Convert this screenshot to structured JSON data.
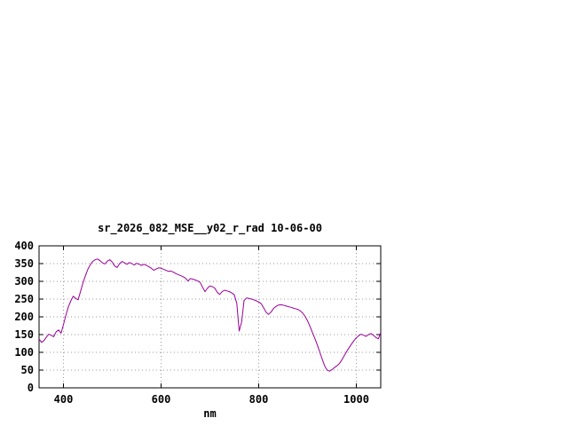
{
  "page": {
    "background": "#ffffff"
  },
  "chart_data": {
    "type": "line",
    "title": "sr_2026_082_MSE__y02_r_rad 10-06-00",
    "xlabel": "nm",
    "ylabel": "",
    "xlim": [
      350,
      1050
    ],
    "ylim": [
      0,
      400
    ],
    "x_ticks": [
      400,
      600,
      800,
      1000
    ],
    "y_ticks": [
      0,
      50,
      100,
      150,
      200,
      250,
      300,
      350,
      400
    ],
    "grid": true,
    "legend": "none",
    "line_color": "#990099",
    "axis_color": "#000000",
    "grid_color": "#9a9a9a",
    "series": [
      {
        "name": "sr_2026_082_MSE__y02_r_rad",
        "points": [
          [
            350,
            138
          ],
          [
            355,
            128
          ],
          [
            360,
            133
          ],
          [
            365,
            143
          ],
          [
            370,
            151
          ],
          [
            375,
            148
          ],
          [
            380,
            144
          ],
          [
            385,
            158
          ],
          [
            390,
            163
          ],
          [
            395,
            154
          ],
          [
            400,
            178
          ],
          [
            405,
            205
          ],
          [
            410,
            228
          ],
          [
            415,
            245
          ],
          [
            420,
            258
          ],
          [
            425,
            252
          ],
          [
            430,
            248
          ],
          [
            435,
            272
          ],
          [
            440,
            296
          ],
          [
            445,
            316
          ],
          [
            450,
            334
          ],
          [
            455,
            347
          ],
          [
            460,
            356
          ],
          [
            465,
            361
          ],
          [
            470,
            363
          ],
          [
            475,
            358
          ],
          [
            480,
            352
          ],
          [
            485,
            349
          ],
          [
            490,
            357
          ],
          [
            495,
            361
          ],
          [
            500,
            354
          ],
          [
            505,
            343
          ],
          [
            510,
            339
          ],
          [
            515,
            350
          ],
          [
            520,
            356
          ],
          [
            525,
            352
          ],
          [
            530,
            348
          ],
          [
            535,
            353
          ],
          [
            540,
            350
          ],
          [
            545,
            346
          ],
          [
            550,
            351
          ],
          [
            555,
            348
          ],
          [
            560,
            345
          ],
          [
            565,
            348
          ],
          [
            570,
            345
          ],
          [
            575,
            341
          ],
          [
            580,
            337
          ],
          [
            585,
            331
          ],
          [
            590,
            335
          ],
          [
            595,
            338
          ],
          [
            600,
            337
          ],
          [
            605,
            334
          ],
          [
            610,
            331
          ],
          [
            615,
            328
          ],
          [
            620,
            329
          ],
          [
            625,
            326
          ],
          [
            630,
            322
          ],
          [
            635,
            319
          ],
          [
            640,
            316
          ],
          [
            645,
            313
          ],
          [
            650,
            309
          ],
          [
            655,
            301
          ],
          [
            660,
            308
          ],
          [
            665,
            306
          ],
          [
            670,
            304
          ],
          [
            675,
            301
          ],
          [
            680,
            297
          ],
          [
            685,
            283
          ],
          [
            690,
            271
          ],
          [
            695,
            281
          ],
          [
            700,
            287
          ],
          [
            705,
            285
          ],
          [
            710,
            281
          ],
          [
            715,
            269
          ],
          [
            720,
            263
          ],
          [
            725,
            271
          ],
          [
            730,
            275
          ],
          [
            735,
            273
          ],
          [
            740,
            271
          ],
          [
            745,
            267
          ],
          [
            750,
            262
          ],
          [
            755,
            238
          ],
          [
            760,
            160
          ],
          [
            765,
            186
          ],
          [
            770,
            246
          ],
          [
            775,
            253
          ],
          [
            780,
            252
          ],
          [
            785,
            250
          ],
          [
            790,
            248
          ],
          [
            795,
            245
          ],
          [
            800,
            242
          ],
          [
            805,
            237
          ],
          [
            810,
            226
          ],
          [
            815,
            213
          ],
          [
            820,
            207
          ],
          [
            825,
            213
          ],
          [
            830,
            223
          ],
          [
            835,
            229
          ],
          [
            840,
            233
          ],
          [
            845,
            234
          ],
          [
            850,
            233
          ],
          [
            855,
            231
          ],
          [
            860,
            229
          ],
          [
            865,
            227
          ],
          [
            870,
            225
          ],
          [
            875,
            223
          ],
          [
            880,
            221
          ],
          [
            885,
            217
          ],
          [
            890,
            211
          ],
          [
            895,
            201
          ],
          [
            900,
            189
          ],
          [
            905,
            173
          ],
          [
            910,
            156
          ],
          [
            915,
            139
          ],
          [
            920,
            121
          ],
          [
            925,
            101
          ],
          [
            930,
            81
          ],
          [
            935,
            62
          ],
          [
            940,
            50
          ],
          [
            945,
            47
          ],
          [
            950,
            51
          ],
          [
            955,
            57
          ],
          [
            960,
            62
          ],
          [
            965,
            68
          ],
          [
            970,
            78
          ],
          [
            975,
            90
          ],
          [
            980,
            102
          ],
          [
            985,
            113
          ],
          [
            990,
            123
          ],
          [
            995,
            133
          ],
          [
            1000,
            141
          ],
          [
            1005,
            147
          ],
          [
            1010,
            151
          ],
          [
            1015,
            148
          ],
          [
            1020,
            145
          ],
          [
            1025,
            150
          ],
          [
            1030,
            153
          ],
          [
            1035,
            148
          ],
          [
            1040,
            142
          ],
          [
            1045,
            138
          ],
          [
            1050,
            156
          ]
        ]
      }
    ]
  }
}
